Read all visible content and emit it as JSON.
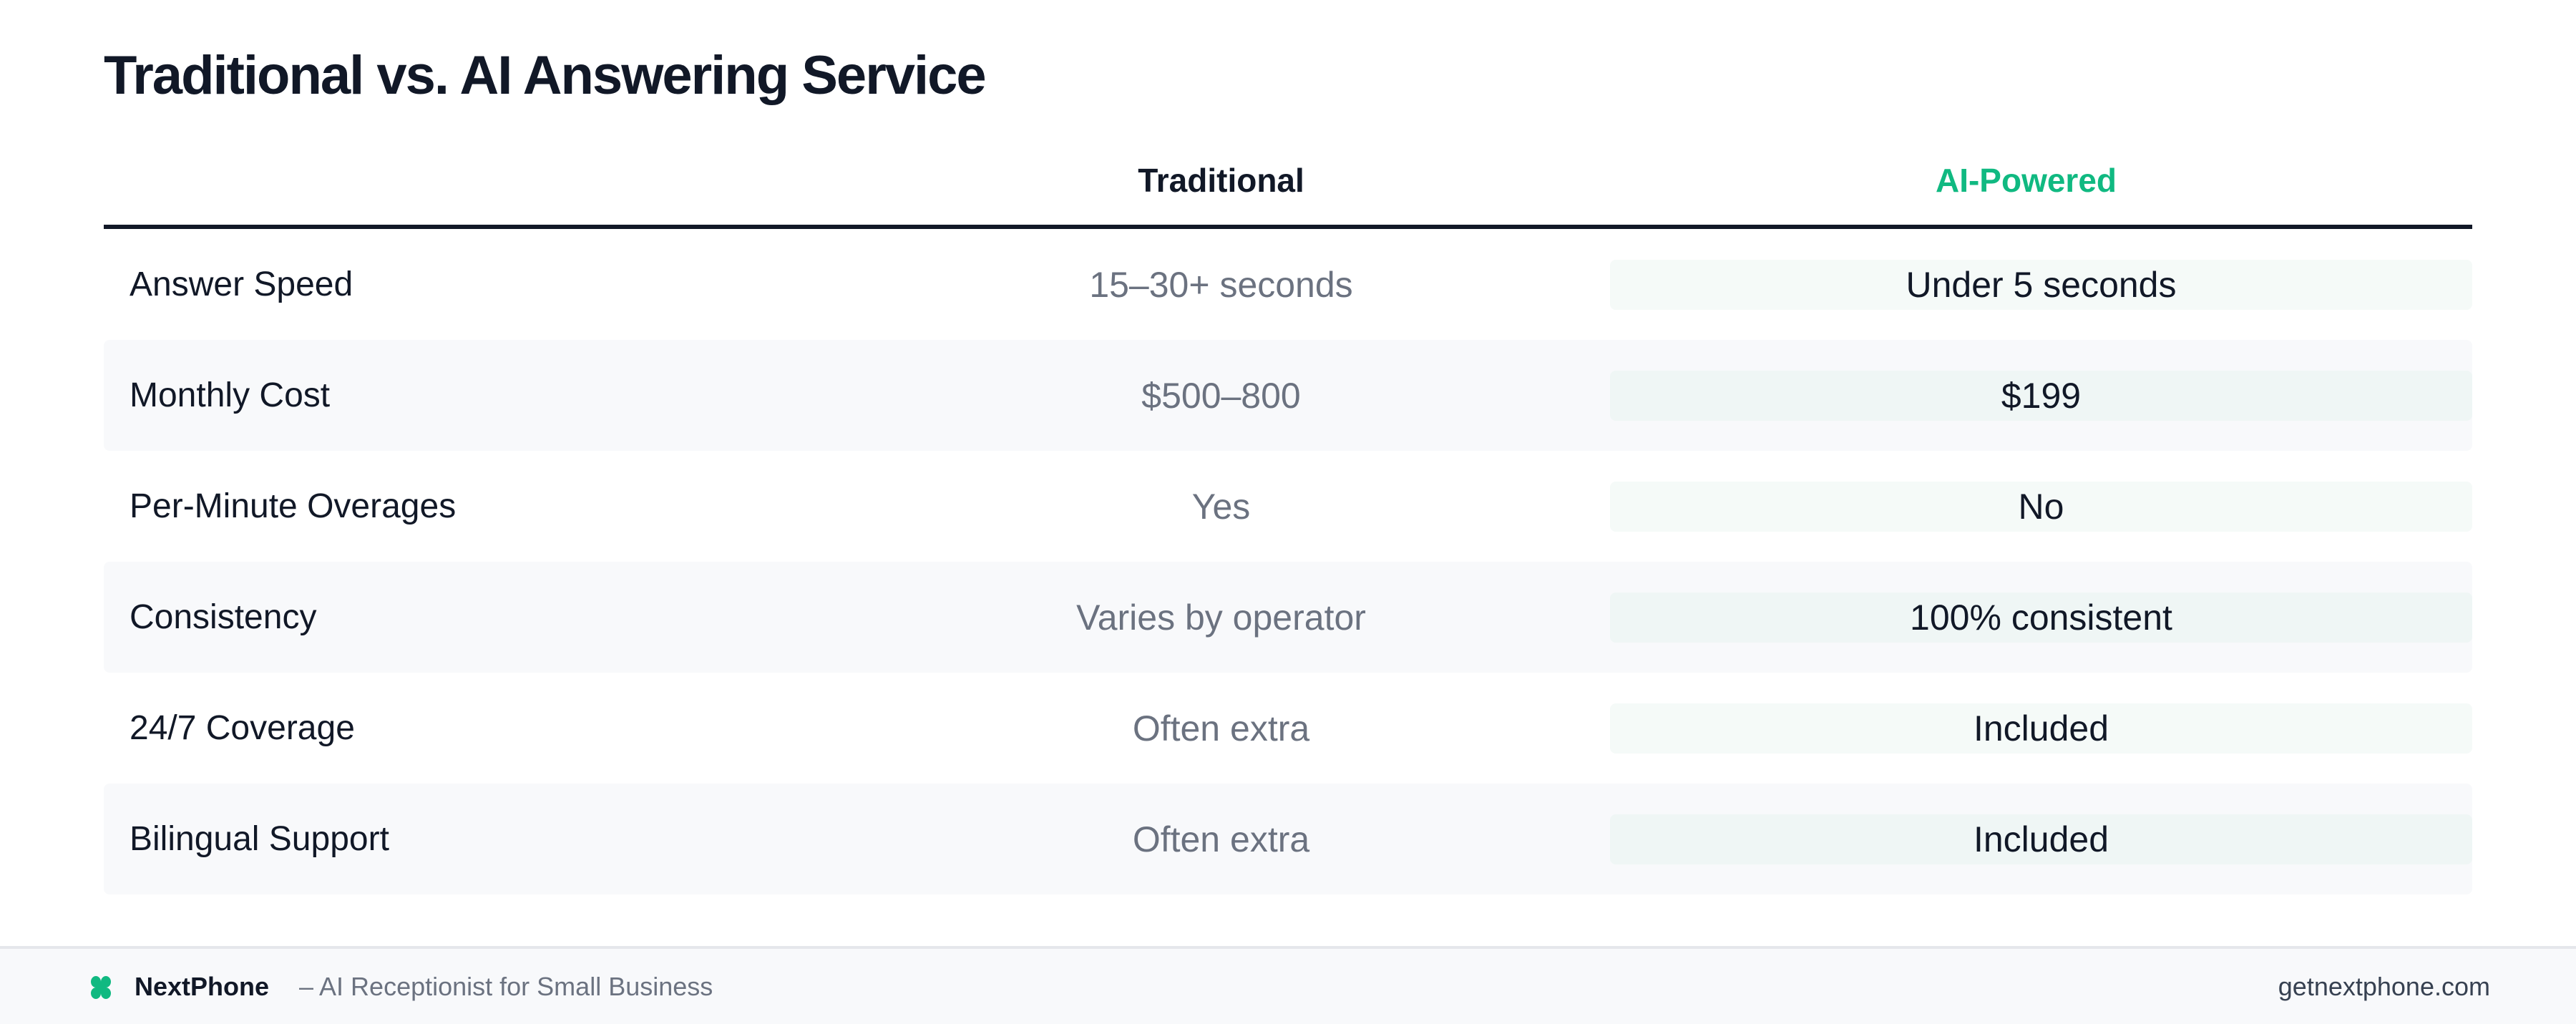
{
  "title": "Traditional vs. AI Answering Service",
  "columns": {
    "feature": "",
    "traditional": "Traditional",
    "ai": "AI-Powered"
  },
  "rows": [
    {
      "feature": "Answer Speed",
      "traditional": "15–30+ seconds",
      "ai": "Under 5 seconds"
    },
    {
      "feature": "Monthly Cost",
      "traditional": "$500–800",
      "ai": "$199"
    },
    {
      "feature": "Per-Minute Overages",
      "traditional": "Yes",
      "ai": "No"
    },
    {
      "feature": "Consistency",
      "traditional": "Varies by operator",
      "ai": "100% consistent"
    },
    {
      "feature": "24/7 Coverage",
      "traditional": "Often extra",
      "ai": "Included"
    },
    {
      "feature": "Bilingual Support",
      "traditional": "Often extra",
      "ai": "Included"
    }
  ],
  "footer": {
    "logo_icon": "nextphone-logo-icon",
    "brand": "NextPhone",
    "tagline": "– AI Receptionist for Small Business",
    "url": "getnextphone.com"
  },
  "colors": {
    "accent": "#10b981",
    "text": "#111827",
    "muted": "#6b7280"
  }
}
